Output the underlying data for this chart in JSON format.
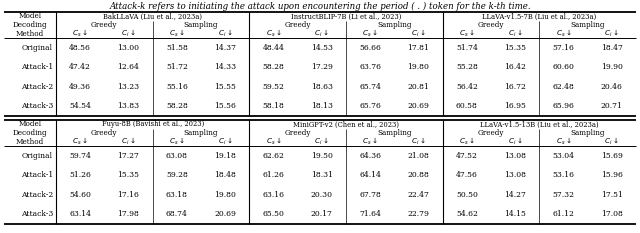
{
  "caption": "Attack-k refers to initiating the attack upon encountering the period ( . ) token for the k-th time.",
  "table1": {
    "models": [
      "BakLLaVA (Liu et al., 2023a)",
      "InstructBLIP-7B (Li et al., 2023)",
      "LLaVA-v1.5-7B (Liu et al., 2023a)"
    ],
    "rows": [
      [
        "Original",
        "48.56",
        "13.00",
        "51.58",
        "14.37",
        "48.44",
        "14.53",
        "56.66",
        "17.81",
        "51.74",
        "15.35",
        "57.16",
        "18.47"
      ],
      [
        "Attack-1",
        "47.42",
        "12.64",
        "51.72",
        "14.33",
        "58.28",
        "17.29",
        "63.76",
        "19.80",
        "55.28",
        "16.42",
        "60.60",
        "19.90"
      ],
      [
        "Attack-2",
        "49.36",
        "13.23",
        "55.16",
        "15.55",
        "59.52",
        "18.63",
        "65.74",
        "20.81",
        "56.42",
        "16.72",
        "62.48",
        "20.46"
      ],
      [
        "Attack-3",
        "54.54",
        "13.83",
        "58.28",
        "15.56",
        "58.18",
        "18.13",
        "65.76",
        "20.69",
        "60.58",
        "16.95",
        "65.96",
        "20.71"
      ]
    ]
  },
  "table2": {
    "models": [
      "Fuyu-8B (Bavishi et al., 2023)",
      "MiniGPT-v2 (Chen et al., 2023)",
      "LLaVA-v1.5-13B (Liu et al., 2023a)"
    ],
    "rows": [
      [
        "Original",
        "59.74",
        "17.27",
        "63.08",
        "19.18",
        "62.62",
        "19.50",
        "64.36",
        "21.08",
        "47.52",
        "13.08",
        "53.04",
        "15.69"
      ],
      [
        "Attack-1",
        "51.26",
        "15.35",
        "59.28",
        "18.48",
        "61.26",
        "18.31",
        "64.14",
        "20.88",
        "47.56",
        "13.08",
        "53.16",
        "15.96"
      ],
      [
        "Attack-2",
        "54.60",
        "17.16",
        "63.18",
        "19.80",
        "63.16",
        "20.30",
        "67.78",
        "22.47",
        "50.50",
        "14.27",
        "57.32",
        "17.51"
      ],
      [
        "Attack-3",
        "63.14",
        "17.98",
        "68.74",
        "20.69",
        "65.50",
        "20.17",
        "71.64",
        "22.79",
        "54.62",
        "14.15",
        "61.12",
        "17.08"
      ]
    ]
  }
}
